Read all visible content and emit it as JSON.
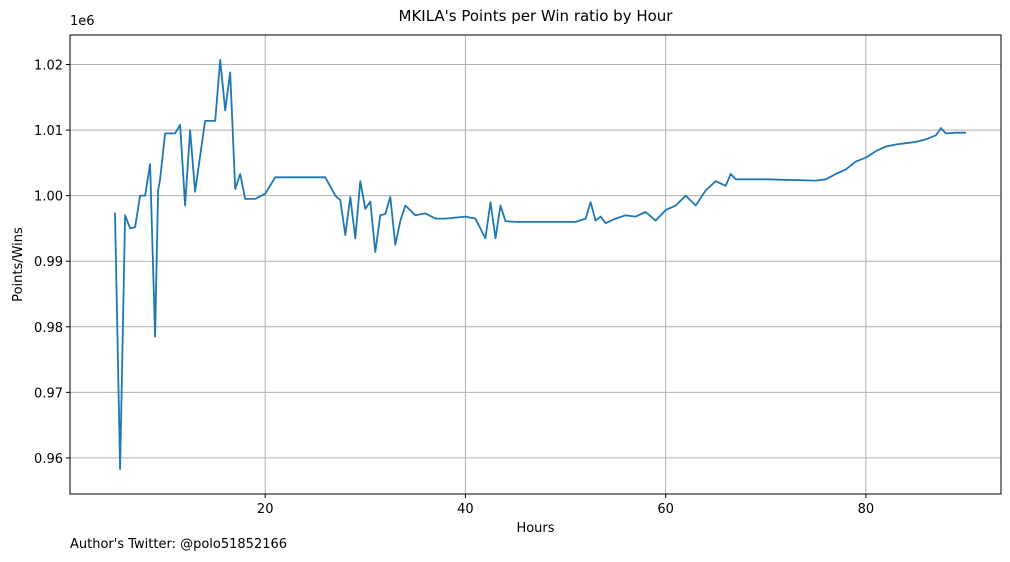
{
  "chart_data": {
    "type": "line",
    "title": "MKILA's Points per Win ratio by Hour",
    "xlabel": "Hours",
    "ylabel": "Points/Wins",
    "offset_label": "1e6",
    "xlim": [
      0.5,
      93.5
    ],
    "ylim": [
      0.9545,
      1.0245
    ],
    "x_ticks": [
      20,
      40,
      60,
      80
    ],
    "y_ticks": [
      0.96,
      0.97,
      0.98,
      0.99,
      1.0,
      1.01,
      1.02
    ],
    "y_tick_labels": [
      "0.96",
      "0.97",
      "0.98",
      "0.99",
      "1.00",
      "1.01",
      "1.02"
    ],
    "grid": true,
    "color": "#1f77b4",
    "series": [
      {
        "x": [
          5.0,
          5.5,
          6.0,
          6.5,
          7.0,
          7.5,
          8.0,
          8.5,
          9.0,
          9.3,
          9.5,
          10.0,
          10.5,
          11.0,
          11.5,
          12.0,
          12.5,
          13.0,
          14.0,
          15.0,
          15.5,
          16.0,
          16.5,
          17.0,
          17.5,
          18.0,
          19.0,
          20.0,
          21.0,
          22.0,
          25.0,
          26.0,
          27.0,
          27.5,
          28.0,
          28.5,
          29.0,
          29.5,
          30.0,
          30.5,
          31.0,
          31.5,
          32.0,
          32.5,
          33.0,
          33.5,
          34.0,
          35.0,
          36.0,
          37.0,
          38.0,
          40.0,
          41.0,
          42.0,
          42.5,
          43.0,
          43.5,
          44.0,
          45.0,
          48.0,
          50.0,
          51.0,
          52.0,
          52.5,
          53.0,
          53.5,
          54.0,
          55.0,
          56.0,
          57.0,
          58.0,
          59.0,
          60.0,
          61.0,
          62.0,
          63.0,
          64.0,
          65.0,
          66.0,
          66.5,
          67.0,
          70.0,
          75.0,
          76.0,
          77.0,
          78.0,
          79.0,
          80.0,
          81.0,
          82.0,
          83.0,
          84.0,
          85.0,
          86.0,
          87.0,
          87.5,
          88.0,
          89.0,
          90.0
        ],
        "y": [
          0.9974,
          0.9583,
          0.997,
          0.995,
          0.9952,
          1.0,
          1.0,
          1.0048,
          0.9785,
          1.0008,
          1.0025,
          1.0095,
          1.0095,
          1.0095,
          1.0108,
          0.9985,
          1.01,
          1.0006,
          1.0114,
          1.0114,
          1.0207,
          1.013,
          1.0188,
          1.001,
          1.0033,
          0.9995,
          0.9995,
          1.0003,
          1.0028,
          1.0028,
          1.0028,
          1.0028,
          1.0,
          0.9993,
          0.994,
          0.9998,
          0.9935,
          1.0022,
          0.998,
          0.9991,
          0.9914,
          0.997,
          0.9972,
          0.9998,
          0.9925,
          0.9962,
          0.9985,
          0.997,
          0.9973,
          0.9965,
          0.9965,
          0.9968,
          0.9965,
          0.9935,
          0.999,
          0.9935,
          0.9985,
          0.9961,
          0.996,
          0.996,
          0.996,
          0.996,
          0.9965,
          0.999,
          0.9962,
          0.9968,
          0.9958,
          0.9965,
          0.997,
          0.9968,
          0.9975,
          0.9962,
          0.9978,
          0.9985,
          1.0,
          0.9985,
          1.0008,
          1.0022,
          1.0015,
          1.0033,
          1.0025,
          1.0025,
          1.0023,
          1.0025,
          1.0033,
          1.004,
          1.0052,
          1.0058,
          1.0068,
          1.0075,
          1.0078,
          1.008,
          1.0082,
          1.0086,
          1.0092,
          1.0103,
          1.0095,
          1.0096,
          1.0096
        ]
      }
    ]
  },
  "footer": {
    "author": "Author's Twitter: @polo51852166"
  }
}
